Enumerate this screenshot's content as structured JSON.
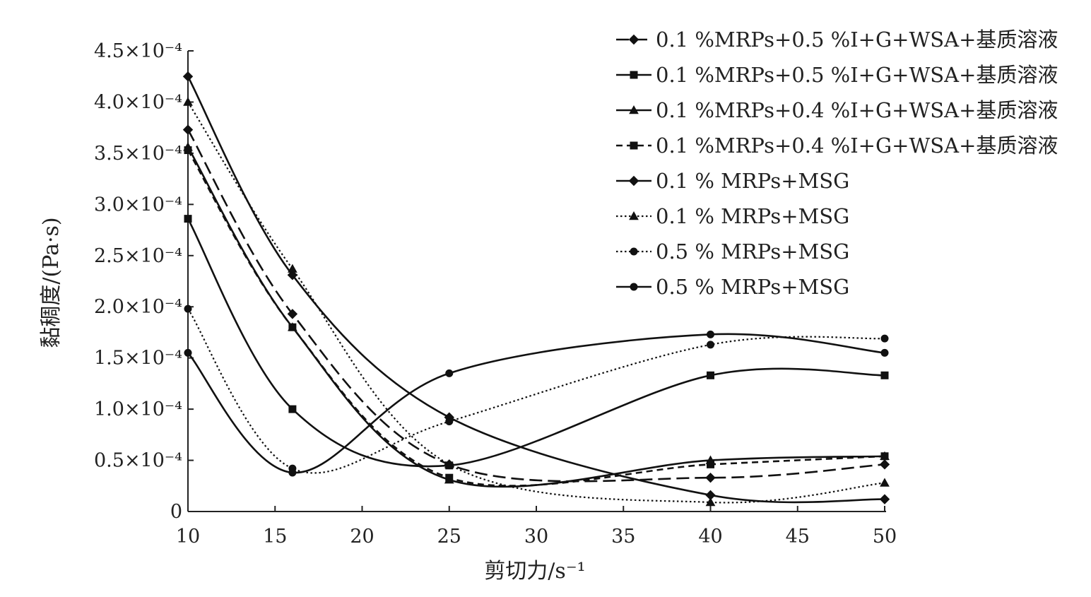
{
  "chart_data": {
    "type": "line",
    "xlabel": "剪切力/s⁻¹",
    "ylabel": "黏稠度/(Pa·s)",
    "xlim": [
      10,
      50
    ],
    "ylim": [
      0,
      0.00045
    ],
    "x_ticks": [
      "10",
      "15",
      "20",
      "25",
      "30",
      "35",
      "40",
      "45",
      "50"
    ],
    "y_ticks": [
      "0",
      "0.5×10⁻⁴",
      "1.0×10⁻⁴",
      "1.5×10⁻⁴",
      "2.0×10⁻⁴",
      "2.5×10⁻⁴",
      "3.0×10⁻⁴",
      "3.5×10⁻⁴",
      "4.0×10⁻⁴",
      "4.5×10⁻⁴"
    ],
    "legend_position": "top-right",
    "grid": false,
    "x": [
      10,
      16,
      25,
      40,
      50
    ],
    "series": [
      {
        "name": "0.1 %MRPs+0.5 %I+G+WSA+基质溶液",
        "marker": "diamond",
        "dash": "longdash",
        "values": [
          0.000373,
          0.000193,
          4.6e-05,
          3.3e-05,
          4.6e-05
        ]
      },
      {
        "name": "0.1 %MRPs+0.5 %I+G+WSA+基质溶液",
        "marker": "square",
        "dash": "solid",
        "values": [
          0.000286,
          0.0001,
          4.5e-05,
          0.000133,
          0.000133
        ]
      },
      {
        "name": "0.1 %MRPs+0.4 %I+G+WSA+基质溶液",
        "marker": "triangle",
        "dash": "solid",
        "values": [
          0.000356,
          0.00018,
          3.1e-05,
          5e-05,
          5.4e-05
        ]
      },
      {
        "name": "0.1 %MRPs+0.4 %I+G+WSA+基质溶液",
        "marker": "square",
        "dash": "dashed",
        "values": [
          0.000353,
          0.00018,
          3.3e-05,
          4.6e-05,
          5.4e-05
        ]
      },
      {
        "name": "0.1 % MRPs+MSG",
        "marker": "diamond",
        "dash": "solid",
        "values": [
          0.000425,
          0.000231,
          9.2e-05,
          1.6e-05,
          1.2e-05
        ]
      },
      {
        "name": "0.1 % MRPs+MSG",
        "marker": "triangle",
        "dash": "dotted",
        "values": [
          0.0004,
          0.000237,
          4.6e-05,
          9e-06,
          2.8e-05
        ]
      },
      {
        "name": "0.5 % MRPs+MSG",
        "marker": "circle",
        "dash": "dotted",
        "values": [
          0.000198,
          4.2e-05,
          8.8e-05,
          0.000163,
          0.000169
        ]
      },
      {
        "name": "0.5 % MRPs+MSG",
        "marker": "circle",
        "dash": "solid",
        "values": [
          0.000155,
          3.8e-05,
          0.000135,
          0.000173,
          0.000155
        ]
      }
    ]
  }
}
